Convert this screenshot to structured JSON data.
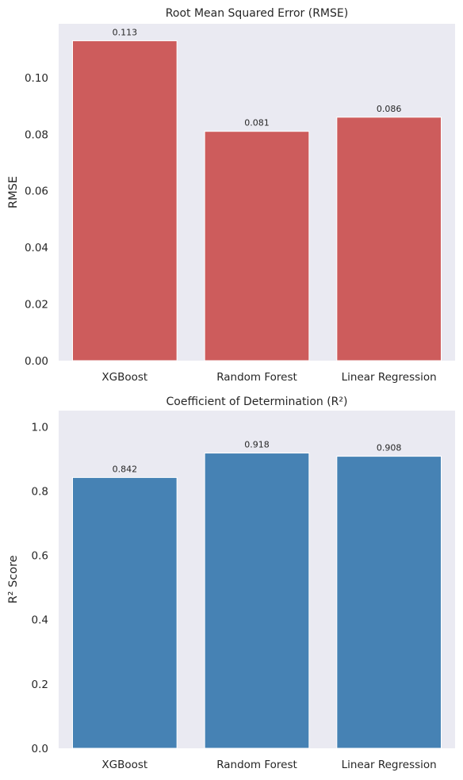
{
  "chart_data": [
    {
      "type": "bar",
      "title": "Root Mean Squared Error (RMSE)",
      "xlabel": "",
      "ylabel": "RMSE",
      "categories": [
        "XGBoost",
        "Random Forest",
        "Linear Regression"
      ],
      "values": [
        0.113,
        0.081,
        0.086
      ],
      "value_labels": [
        "0.113",
        "0.081",
        "0.086"
      ],
      "ylim": [
        0,
        0.119
      ],
      "yticks": [
        0.0,
        0.02,
        0.04,
        0.06,
        0.08,
        0.1
      ],
      "ytick_labels": [
        "0.00",
        "0.02",
        "0.04",
        "0.06",
        "0.08",
        "0.10"
      ],
      "bar_color": "#cd5c5c",
      "background": "#eaeaf2",
      "grid": false,
      "legend": "none"
    },
    {
      "type": "bar",
      "title": "Coefficient of Determination (R²)",
      "xlabel": "",
      "ylabel": "R² Score",
      "categories": [
        "XGBoost",
        "Random Forest",
        "Linear Regression"
      ],
      "values": [
        0.842,
        0.918,
        0.908
      ],
      "value_labels": [
        "0.842",
        "0.918",
        "0.908"
      ],
      "ylim": [
        0,
        1.05
      ],
      "yticks": [
        0.0,
        0.2,
        0.4,
        0.6,
        0.8,
        1.0
      ],
      "ytick_labels": [
        "0.0",
        "0.2",
        "0.4",
        "0.6",
        "0.8",
        "1.0"
      ],
      "bar_color": "#4682b4",
      "background": "#eaeaf2",
      "grid": false,
      "legend": "none"
    }
  ]
}
